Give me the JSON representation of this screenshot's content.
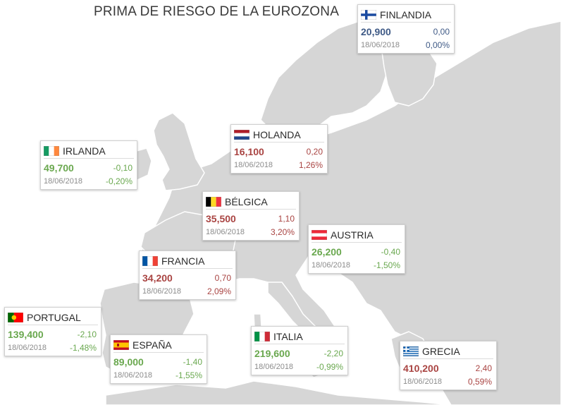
{
  "title": "PRIMA DE RIESGO DE LA EUROZONA",
  "colors": {
    "up": "#a94442",
    "down": "#6aa84f",
    "flat": "#3f5a86",
    "land": "#d6d6d6",
    "sea": "#ffffff"
  },
  "countries": [
    {
      "id": "finlandia",
      "name": "FINLANDIA",
      "flag": "fi",
      "value": "20,900",
      "change": "0,00",
      "date": "18/06/2018",
      "pct": "0,00%",
      "trend": "flat"
    },
    {
      "id": "holanda",
      "name": "HOLANDA",
      "flag": "nl",
      "value": "16,100",
      "change": "0,20",
      "date": "18/06/2018",
      "pct": "1,26%",
      "trend": "up"
    },
    {
      "id": "irlanda",
      "name": "IRLANDA",
      "flag": "ie",
      "value": "49,700",
      "change": "-0,10",
      "date": "18/06/2018",
      "pct": "-0,20%",
      "trend": "down"
    },
    {
      "id": "belgica",
      "name": "BÉLGICA",
      "flag": "be",
      "value": "35,500",
      "change": "1,10",
      "date": "18/06/2018",
      "pct": "3,20%",
      "trend": "up"
    },
    {
      "id": "austria",
      "name": "AUSTRIA",
      "flag": "at",
      "value": "26,200",
      "change": "-0,40",
      "date": "18/06/2018",
      "pct": "-1,50%",
      "trend": "down"
    },
    {
      "id": "francia",
      "name": "FRANCIA",
      "flag": "fr",
      "value": "34,200",
      "change": "0,70",
      "date": "18/06/2018",
      "pct": "2,09%",
      "trend": "up"
    },
    {
      "id": "portugal",
      "name": "PORTUGAL",
      "flag": "pt",
      "value": "139,400",
      "change": "-2,10",
      "date": "18/06/2018",
      "pct": "-1,48%",
      "trend": "down"
    },
    {
      "id": "espana",
      "name": "ESPAÑA",
      "flag": "es",
      "value": "89,000",
      "change": "-1,40",
      "date": "18/06/2018",
      "pct": "-1,55%",
      "trend": "down"
    },
    {
      "id": "italia",
      "name": "ITALIA",
      "flag": "it",
      "value": "219,600",
      "change": "-2,20",
      "date": "18/06/2018",
      "pct": "-0,99%",
      "trend": "down"
    },
    {
      "id": "grecia",
      "name": "GRECIA",
      "flag": "gr",
      "value": "410,200",
      "change": "2,40",
      "date": "18/06/2018",
      "pct": "0,59%",
      "trend": "up"
    }
  ]
}
